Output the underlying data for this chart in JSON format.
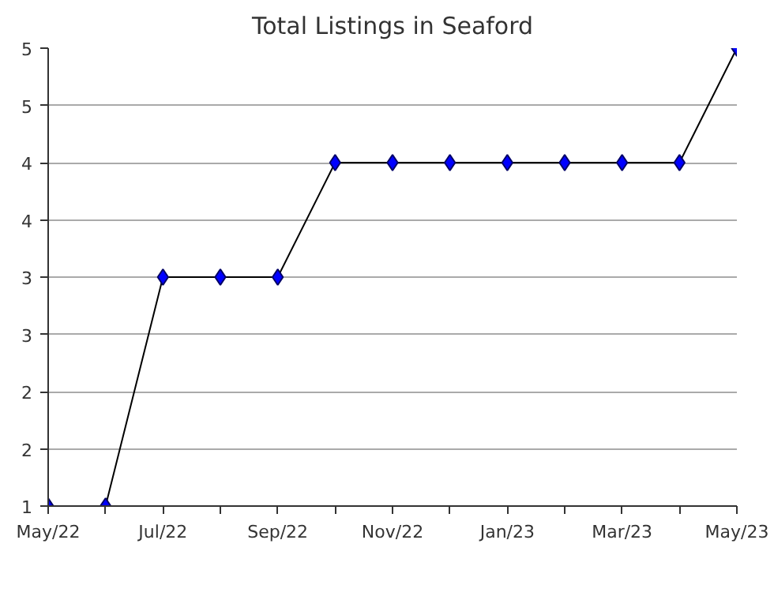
{
  "chart_data": {
    "type": "line",
    "title": "Total Listings in Seaford",
    "categories": [
      "May/22",
      null,
      "Jul/22",
      null,
      "Sep/22",
      null,
      "Nov/22",
      null,
      "Jan/23",
      null,
      "Mar/23",
      null,
      "May/23"
    ],
    "series": [
      {
        "color": "#0000ff",
        "values": [
          1,
          1,
          3,
          3,
          3,
          4,
          4,
          4,
          4,
          4,
          4,
          4,
          5
        ]
      }
    ],
    "ylim": [
      1,
      5
    ],
    "yticks": [
      1,
      {
        "value": 1.5,
        "label": "2"
      },
      2,
      {
        "value": 2.5,
        "label": "3"
      },
      3,
      {
        "value": 3.5,
        "label": "4"
      },
      4,
      {
        "value": 4.5,
        "label": "5"
      },
      5
    ],
    "grid": "y",
    "marker": "diamond",
    "line_style": "solid"
  }
}
